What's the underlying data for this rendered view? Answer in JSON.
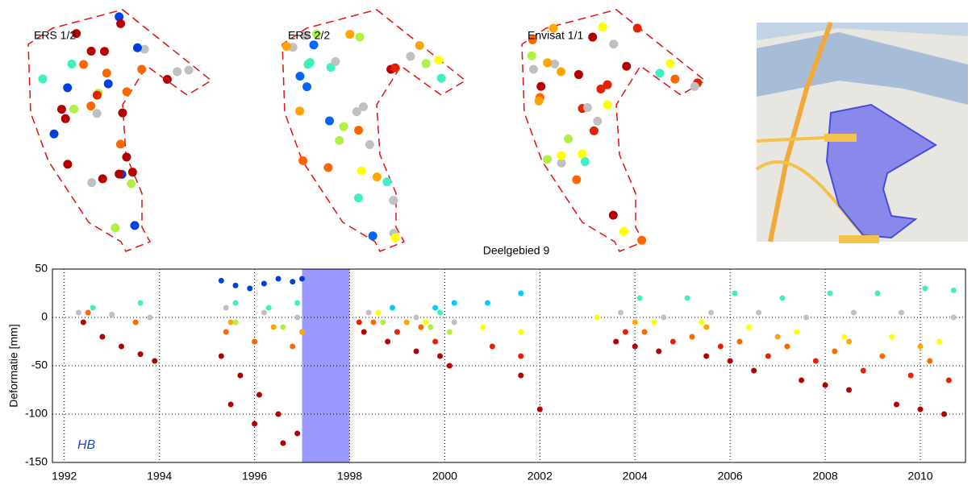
{
  "map_panels": [
    {
      "title": "ERS 1/2"
    },
    {
      "title": "ERS 2/2"
    },
    {
      "title": "Envisat 1/1"
    }
  ],
  "chart_data": {
    "type": "scatter",
    "title": "Deelgebied 9",
    "y_label": "Deformatie [mm]",
    "annotation": "HB",
    "xlim": [
      1991.75,
      2010.95
    ],
    "ylim": [
      -150,
      50
    ],
    "xticks": [
      1992,
      1994,
      1996,
      1998,
      2000,
      2002,
      2004,
      2006,
      2008,
      2010
    ],
    "yticks": [
      -150,
      -100,
      -50,
      0,
      50
    ],
    "grid": true,
    "highlight": {
      "x": [
        1997,
        1998
      ],
      "color": "#9999ff"
    },
    "series": [
      {
        "color": "#b30000",
        "x": [
          1992.4,
          1992.8,
          1993.2,
          1993.6,
          1993.9,
          1995.3,
          1995.7,
          1996.1,
          1996.5,
          1996.9,
          1995.5,
          1996.0,
          1996.6,
          1998.3,
          1998.8,
          1999.4,
          1999.9,
          2000.1,
          2001.6,
          2002.0,
          2003.6,
          2004.5,
          2005.5,
          2006.5,
          2007.5,
          2008.5,
          2009.5,
          2010.5,
          2004.0,
          2006.0,
          2008.0,
          2010.0
        ],
        "values": [
          -5,
          -20,
          -30,
          -38,
          -45,
          -40,
          -60,
          -80,
          -100,
          -120,
          -90,
          -110,
          -130,
          -15,
          -25,
          -35,
          -40,
          -50,
          -60,
          -95,
          -25,
          -35,
          -40,
          -55,
          -65,
          -75,
          -90,
          -100,
          -30,
          -45,
          -70,
          -95
        ]
      },
      {
        "color": "#e82000",
        "x": [
          1998.2,
          1999.0,
          1999.8,
          2001.0,
          2001.6,
          2003.8,
          2004.8,
          2005.8,
          2006.8,
          2007.8,
          2008.8,
          2009.8,
          2010.6
        ],
        "values": [
          -5,
          -15,
          -25,
          -30,
          -40,
          -15,
          -25,
          -30,
          -40,
          -45,
          -55,
          -60,
          -65
        ]
      },
      {
        "color": "#ff6600",
        "x": [
          1992.5,
          1993.5,
          1995.4,
          1996.0,
          1996.8,
          1998.5,
          1999.5,
          2004.2,
          2005.2,
          2006.2,
          2007.2,
          2008.2,
          2009.2,
          2010.2
        ],
        "values": [
          5,
          -5,
          -15,
          -25,
          -30,
          -5,
          -10,
          -15,
          -20,
          -25,
          -30,
          -35,
          -40,
          -45
        ]
      },
      {
        "color": "#ffa500",
        "x": [
          1995.5,
          1996.4,
          1997.0,
          1999.2,
          2004.0,
          2005.5,
          2007.0,
          2008.5,
          2010.0
        ],
        "values": [
          -5,
          -10,
          -15,
          -5,
          -5,
          -10,
          -20,
          -25,
          -30
        ]
      },
      {
        "color": "#ffff00",
        "x": [
          1998.6,
          1999.6,
          2000.8,
          2001.6,
          2003.2,
          2004.4,
          2005.4,
          2006.4,
          2007.4,
          2008.4,
          2009.4,
          2010.4
        ],
        "values": [
          5,
          -5,
          -10,
          -15,
          0,
          -5,
          -5,
          -10,
          -15,
          -20,
          -20,
          -25
        ]
      },
      {
        "color": "#c0c0c0",
        "x": [
          1992.3,
          1993.0,
          1993.8,
          1995.4,
          1996.2,
          1996.9,
          1998.4,
          1999.4,
          2000.2,
          2003.7,
          2004.6,
          2005.6,
          2006.6,
          2007.6,
          2008.6,
          2009.6,
          2010.7
        ],
        "values": [
          5,
          3,
          0,
          10,
          5,
          0,
          5,
          0,
          -5,
          5,
          0,
          5,
          5,
          0,
          5,
          5,
          0
        ]
      },
      {
        "color": "#40f0c0",
        "x": [
          1992.6,
          1993.6,
          1995.6,
          1996.3,
          1996.9,
          1998.9,
          1999.9,
          2004.1,
          2005.1,
          2006.1,
          2007.1,
          2008.1,
          2009.1,
          2010.1,
          2010.7
        ],
        "values": [
          10,
          15,
          15,
          10,
          15,
          10,
          5,
          20,
          20,
          25,
          20,
          25,
          25,
          30,
          28
        ]
      },
      {
        "color": "#b0f040",
        "x": [
          1995.6,
          1996.6,
          1998.7,
          1999.7,
          2000.1
        ],
        "values": [
          -5,
          -10,
          -5,
          -10,
          -15
        ]
      },
      {
        "color": "#00ccff",
        "x": [
          1998.9,
          1999.8,
          2000.2,
          2000.9,
          2001.6
        ],
        "values": [
          10,
          10,
          15,
          15,
          25
        ]
      },
      {
        "color": "#0040e0",
        "x": [
          1995.3,
          1995.6,
          1995.9,
          1996.2,
          1996.5,
          1996.8,
          1997.0
        ],
        "values": [
          38,
          33,
          30,
          35,
          40,
          37,
          40
        ]
      }
    ]
  }
}
